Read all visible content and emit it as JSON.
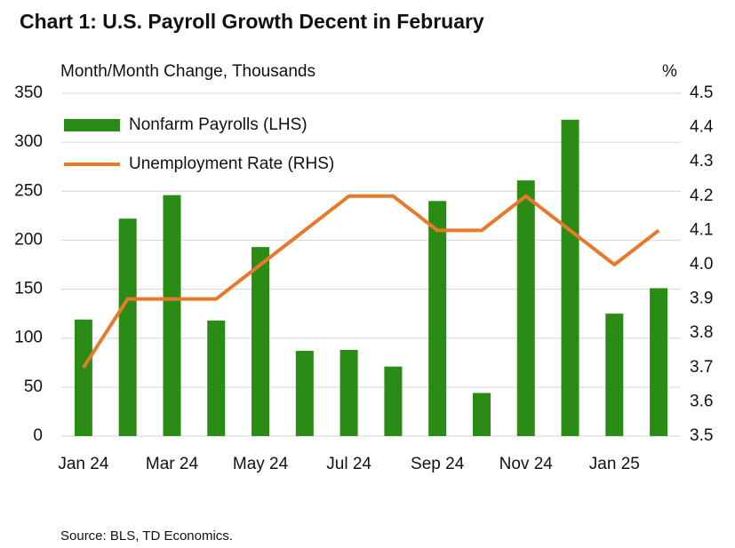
{
  "chart_data": {
    "type": "bar_line",
    "title": "Chart 1: U.S. Payroll Growth Decent in February",
    "y_label": "Month/Month Change, Thousands",
    "y2_label": "%",
    "source": "Source: BLS, TD Economics.",
    "categories": [
      "Jan 24",
      null,
      "Mar 24",
      null,
      "May 24",
      null,
      "Jul 24",
      null,
      "Sep 24",
      null,
      "Nov 24",
      null,
      "Jan 25",
      null
    ],
    "series": [
      {
        "name": "Nonfarm Payrolls (LHS)",
        "type": "bar",
        "color": "#2a8c14",
        "values": [
          119,
          222,
          246,
          118,
          193,
          87,
          88,
          71,
          240,
          44,
          261,
          323,
          125,
          151
        ]
      },
      {
        "name": "Unemployment Rate (RHS)",
        "type": "line",
        "axis": "y2",
        "color": "#e8782a",
        "values": [
          3.7,
          3.9,
          3.9,
          3.9,
          4.0,
          4.1,
          4.2,
          4.2,
          4.1,
          4.1,
          4.2,
          4.1,
          4.0,
          4.1
        ]
      }
    ],
    "ylim": [
      0,
      350
    ],
    "yticks": [
      0,
      50,
      100,
      150,
      200,
      250,
      300,
      350
    ],
    "y2lim": [
      3.5,
      4.5
    ],
    "y2ticks": [
      3.5,
      3.6,
      3.7,
      3.8,
      3.9,
      {
        "value": 4,
        "label": "4.0"
      },
      4.1,
      4.2,
      4.3,
      4.4,
      4.5
    ],
    "grid": true,
    "legend": "upper left"
  }
}
